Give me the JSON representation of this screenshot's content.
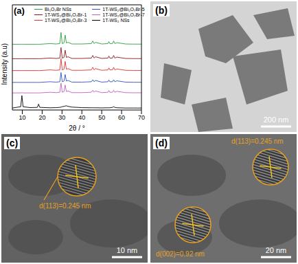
{
  "chart_data": {
    "type": "line",
    "title": "(a)",
    "x_label": "2θ / °",
    "y_label": "Intensity (a.u)",
    "x": [
      5,
      9.2,
      9.8,
      10.4,
      14,
      17.6,
      18.2,
      18.8,
      24,
      27,
      28.9,
      29.5,
      30.1,
      31.0,
      31.6,
      32.2,
      33.0,
      35,
      40,
      44.8,
      45.5,
      46.2,
      46.8,
      50,
      53.1,
      53.6,
      54.1,
      55.4,
      56.0,
      56.6,
      57.6,
      62,
      66,
      70
    ],
    "xlim": [
      5,
      70
    ],
    "xticks": [
      10,
      20,
      30,
      40,
      50,
      60,
      70
    ],
    "ylim": [
      0,
      8
    ],
    "tick_labels": "x",
    "legend": "top",
    "series": [
      {
        "name": "Bi₅O₇Br NSs",
        "color": "#2e9e3e",
        "values": [
          5,
          5,
          5,
          5,
          5,
          5,
          5,
          5,
          5.05,
          5.02,
          5.05,
          5.9,
          5.05,
          5.1,
          5.7,
          5.1,
          5.15,
          5.02,
          5.02,
          5.05,
          5.25,
          5.05,
          5.15,
          5.02,
          5.05,
          5.2,
          5.05,
          5.05,
          5.25,
          5.05,
          5.12,
          5.02,
          5.01,
          5.01
        ]
      },
      {
        "name": "1T-WS₂@Bi₅O₇Br-1",
        "color": "#8b1a1a",
        "values": [
          3.9,
          3.9,
          3.9,
          3.9,
          3.9,
          3.9,
          3.9,
          3.9,
          3.95,
          3.92,
          3.95,
          4.75,
          3.95,
          4.0,
          4.55,
          4.0,
          4.05,
          3.92,
          3.92,
          3.95,
          4.15,
          3.95,
          4.05,
          3.92,
          3.95,
          4.1,
          3.95,
          3.95,
          4.15,
          3.95,
          4.02,
          3.92,
          3.91,
          3.91
        ]
      },
      {
        "name": "1T-WS₂@Bi₅O₇Br-3",
        "color": "#e03030",
        "values": [
          3,
          3,
          3,
          3,
          3,
          3,
          3,
          3,
          3.05,
          3.02,
          3.05,
          3.9,
          3.05,
          3.1,
          3.7,
          3.1,
          3.15,
          3.02,
          3.02,
          3.05,
          3.25,
          3.05,
          3.15,
          3.02,
          3.05,
          3.2,
          3.05,
          3.05,
          3.25,
          3.05,
          3.12,
          3.02,
          3.01,
          3.01
        ]
      },
      {
        "name": "1T-WS₂@Bi₅O₇Br-5",
        "color": "#3050c0",
        "values": [
          2.1,
          2.1,
          2.1,
          2.1,
          2.1,
          2.1,
          2.1,
          2.1,
          2.15,
          2.12,
          2.15,
          2.85,
          2.15,
          2.2,
          2.7,
          2.2,
          2.25,
          2.12,
          2.12,
          2.15,
          2.3,
          2.15,
          2.25,
          2.12,
          2.15,
          2.28,
          2.15,
          2.15,
          2.3,
          2.15,
          2.22,
          2.12,
          2.11,
          2.11
        ]
      },
      {
        "name": "1T-WS₂@Bi₅O₇Br-7",
        "color": "#c060c0",
        "values": [
          1.3,
          1.3,
          1.32,
          1.3,
          1.3,
          1.3,
          1.3,
          1.3,
          1.35,
          1.32,
          1.35,
          2.05,
          1.35,
          1.4,
          1.9,
          1.4,
          1.45,
          1.32,
          1.32,
          1.35,
          1.5,
          1.35,
          1.45,
          1.32,
          1.35,
          1.48,
          1.35,
          1.35,
          1.5,
          1.35,
          1.42,
          1.32,
          1.31,
          1.31
        ]
      },
      {
        "name": "1T-WS₂ NSs",
        "color": "#000000",
        "values": [
          0.15,
          0.25,
          1.1,
          0.25,
          0.18,
          0.2,
          0.45,
          0.2,
          0.17,
          0.18,
          0.2,
          0.22,
          0.25,
          0.28,
          0.3,
          0.32,
          0.28,
          0.22,
          0.18,
          0.17,
          0.17,
          0.17,
          0.17,
          0.16,
          0.17,
          0.17,
          0.17,
          0.2,
          0.25,
          0.2,
          0.17,
          0.15,
          0.15,
          0.15
        ]
      }
    ]
  },
  "images": [
    {
      "label": "(b)",
      "scale_bar": "200 nm",
      "annotations": []
    },
    {
      "label": "(c)",
      "scale_bar": "10 nm",
      "annotations": [
        "d(113)=0.245 nm"
      ]
    },
    {
      "label": "(d)",
      "scale_bar": "20 nm",
      "annotations": [
        "d(113)=0.245 nm",
        "d(002)=0.92 nm"
      ]
    }
  ]
}
